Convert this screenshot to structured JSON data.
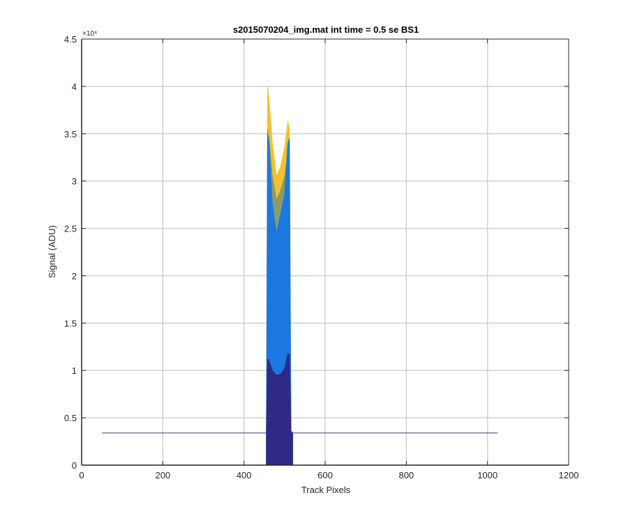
{
  "chart_data": {
    "type": "area",
    "title": "s2015070204_img.mat int time = 0.5 se   BS1",
    "xlabel": "Track Pixels",
    "ylabel": "Signal (ADU)",
    "xlim": [
      0,
      1200
    ],
    "ylim": [
      0,
      45000
    ],
    "xticks": [
      0,
      200,
      400,
      600,
      800,
      1000,
      1200
    ],
    "yticks": [
      0,
      5000,
      10000,
      15000,
      20000,
      25000,
      30000,
      35000,
      40000,
      45000
    ],
    "xtick_labels": [
      "0",
      "200",
      "400",
      "600",
      "800",
      "1000",
      "1200"
    ],
    "ytick_labels": [
      "0",
      "0.5",
      "1",
      "1.5",
      "2",
      "2.5",
      "3",
      "3.5",
      "4",
      "4.5"
    ],
    "y_multiplier_label": "×10⁴",
    "grid": true,
    "colors": {
      "background_signal": "#3a3a8c",
      "series_top": "#f5c12b",
      "series_upper": "#8a9c68",
      "series_middle": "#1a78e0",
      "series_lower": "#2e2a85",
      "grid": "#d0d0d0",
      "axis": "#262626"
    },
    "series": [
      {
        "x": [
          455,
          458,
          462,
          470,
          480,
          490,
          500,
          508,
          512,
          516,
          520
        ],
        "y": [
          3400,
          40000,
          38500,
          34000,
          30500,
          31500,
          33500,
          36300,
          35500,
          3600,
          3400
        ]
      },
      {
        "x": [
          455,
          458,
          462,
          470,
          480,
          490,
          500,
          508,
          512,
          516,
          520
        ],
        "y": [
          3400,
          35500,
          34500,
          30500,
          28000,
          29000,
          30500,
          33000,
          32500,
          3600,
          3400
        ]
      },
      {
        "x": [
          455,
          458,
          462,
          470,
          480,
          490,
          500,
          508,
          512,
          516,
          520
        ],
        "y": [
          3400,
          35000,
          34000,
          27500,
          24500,
          26500,
          28500,
          34000,
          34500,
          3600,
          3400
        ]
      },
      {
        "x": [
          455,
          458,
          462,
          470,
          480,
          490,
          500,
          508,
          512,
          516,
          520
        ],
        "y": [
          3400,
          11200,
          11000,
          10000,
          9500,
          9600,
          10200,
          11800,
          11700,
          3600,
          3400
        ]
      }
    ],
    "baseline": {
      "x": [
        50,
        1025
      ],
      "y": 3400
    }
  }
}
